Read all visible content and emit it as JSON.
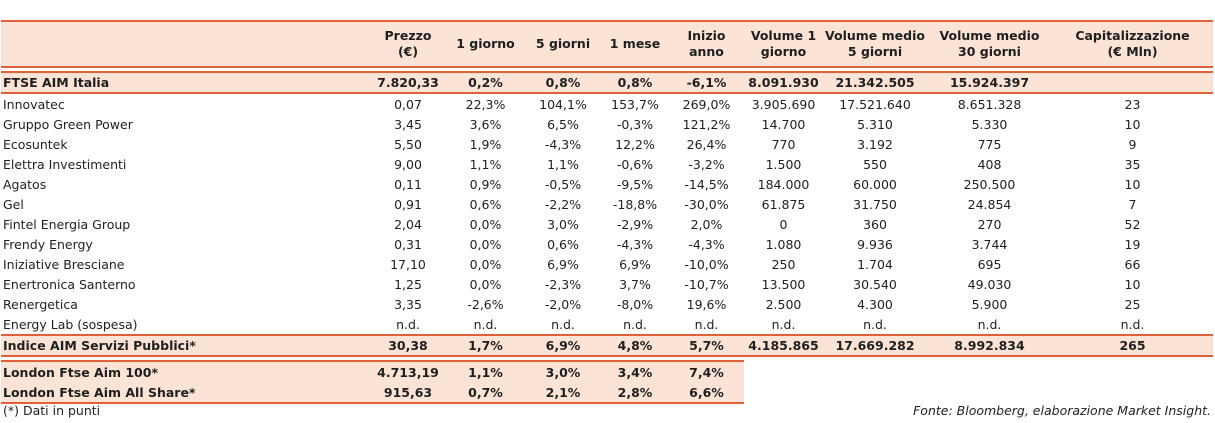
{
  "headers": [
    "",
    "Prezzo\n(€)",
    "1 giorno",
    "5 giorni",
    "1 mese",
    "Inizio anno",
    "Volume 1\ngiorno",
    "Volume medio\n5 giorni",
    "Volume medio\n30 giorni",
    "Capitalizzazione\n(€ Mln)"
  ],
  "index_row": [
    "FTSE AIM Italia",
    "7.820,33",
    "0,2%",
    "0,8%",
    "0,8%",
    "-6,1%",
    "8.091.930",
    "21.342.505",
    "15.924.397",
    ""
  ],
  "rows": [
    [
      "Innovatec",
      "0,07",
      "22,3%",
      "104,1%",
      "153,7%",
      "269,0%",
      "3.905.690",
      "17.521.640",
      "8.651.328",
      "23"
    ],
    [
      "Gruppo Green Power",
      "3,45",
      "3,6%",
      "6,5%",
      "-0,3%",
      "121,2%",
      "14.700",
      "5.310",
      "5.330",
      "10"
    ],
    [
      "Ecosuntek",
      "5,50",
      "1,9%",
      "-4,3%",
      "12,2%",
      "26,4%",
      "770",
      "3.192",
      "775",
      "9"
    ],
    [
      "Elettra Investimenti",
      "9,00",
      "1,1%",
      "1,1%",
      "-0,6%",
      "-3,2%",
      "1.500",
      "550",
      "408",
      "35"
    ],
    [
      "Agatos",
      "0,11",
      "0,9%",
      "-0,5%",
      "-9,5%",
      "-14,5%",
      "184.000",
      "60.000",
      "250.500",
      "10"
    ],
    [
      "Gel",
      "0,91",
      "0,6%",
      "-2,2%",
      "-18,8%",
      "-30,0%",
      "61.875",
      "31.750",
      "24.854",
      "7"
    ],
    [
      "Fintel Energia Group",
      "2,04",
      "0,0%",
      "3,0%",
      "-2,9%",
      "2,0%",
      "0",
      "360",
      "270",
      "52"
    ],
    [
      "Frendy Energy",
      "0,31",
      "0,0%",
      "0,6%",
      "-4,3%",
      "-4,3%",
      "1.080",
      "9.936",
      "3.744",
      "19"
    ],
    [
      "Iniziative Bresciane",
      "17,10",
      "0,0%",
      "6,9%",
      "6,9%",
      "-10,0%",
      "250",
      "1.704",
      "695",
      "66"
    ],
    [
      "Enertronica Santerno",
      "1,25",
      "0,0%",
      "-2,3%",
      "3,7%",
      "-10,7%",
      "13.500",
      "30.540",
      "49.030",
      "10"
    ],
    [
      "Renergetica",
      "3,35",
      "-2,6%",
      "-2,0%",
      "-8,0%",
      "19,6%",
      "2.500",
      "4.300",
      "5.900",
      "25"
    ],
    [
      "Energy Lab (sospesa)",
      "n.d.",
      "n.d.",
      "n.d.",
      "n.d.",
      "n.d.",
      "n.d.",
      "n.d.",
      "n.d.",
      "n.d."
    ]
  ],
  "aim_row": [
    "Indice AIM Servizi Pubblici*",
    "30,38",
    "1,7%",
    "6,9%",
    "4,8%",
    "5,7%",
    "4.185.865",
    "17.669.282",
    "8.992.834",
    "265"
  ],
  "london_rows": [
    [
      "London Ftse Aim 100*",
      "4.713,19",
      "1,1%",
      "3,0%",
      "3,4%",
      "7,4%"
    ],
    [
      "London Ftse Aim All Share*",
      "915,63",
      "0,7%",
      "2,1%",
      "2,8%",
      "6,6%"
    ]
  ],
  "footnote": "(*) Dati in punti",
  "source": "Fonte: Bloomberg, elaborazione Market Insight.",
  "colors": {
    "header_fill": "#fbe3d6",
    "rule": "#e0603a"
  }
}
